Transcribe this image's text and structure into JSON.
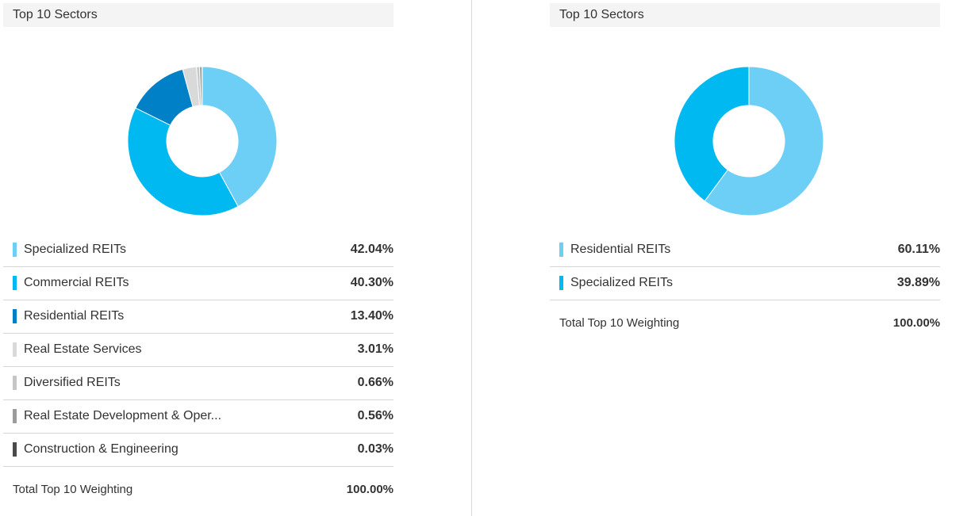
{
  "chart_data": [
    {
      "type": "pie",
      "title": "Top 10 Sectors",
      "categories": [
        "Specialized REITs",
        "Commercial REITs",
        "Residential REITs",
        "Real Estate Services",
        "Diversified REITs",
        "Real Estate Development & Oper...",
        "Construction & Engineering"
      ],
      "values": [
        42.04,
        40.3,
        13.4,
        3.01,
        0.66,
        0.56,
        0.03
      ],
      "value_labels": [
        "42.04%",
        "40.30%",
        "13.40%",
        "3.01%",
        "0.66%",
        "0.56%",
        "0.03%"
      ],
      "colors": [
        "#6ecff6",
        "#00b9f0",
        "#0080c6",
        "#d9d9d9",
        "#c6c6c6",
        "#9c9c9c",
        "#4a4a4a"
      ],
      "total_label": "Total Top 10 Weighting",
      "total_value": "100.00%"
    },
    {
      "type": "pie",
      "title": "Top 10 Sectors",
      "categories": [
        "Residential REITs",
        "Specialized REITs"
      ],
      "values": [
        60.11,
        39.89
      ],
      "value_labels": [
        "60.11%",
        "39.89%"
      ],
      "colors": [
        "#6ecff6",
        "#00b9f0"
      ],
      "total_label": "Total Top 10 Weighting",
      "total_value": "100.00%"
    }
  ]
}
